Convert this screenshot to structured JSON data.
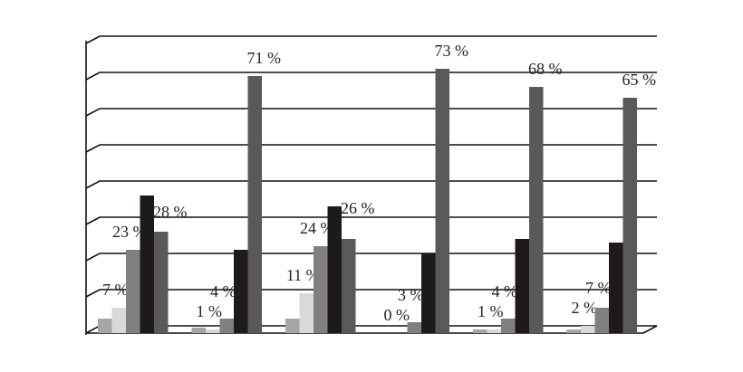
{
  "chart_data": {
    "type": "bar",
    "categories": [
      null,
      null,
      null,
      null,
      null,
      null
    ],
    "series": [
      {
        "color": "#a6a6a6",
        "values": [
          4,
          1.5,
          4,
          0,
          1,
          1
        ],
        "value_labels": [
          null,
          null,
          null,
          null,
          null,
          null
        ]
      },
      {
        "color": "#d9d9d9",
        "values": [
          7,
          1,
          11,
          0,
          1,
          2
        ],
        "value_labels": [
          "7 %",
          "1 %",
          "11 %",
          "0 %",
          "1 %",
          "2 %"
        ]
      },
      {
        "color": "#808080",
        "values": [
          23,
          4,
          24,
          3,
          4,
          7
        ],
        "value_labels": [
          "23 %",
          "4 %",
          "24 %",
          "3 %",
          "4 %",
          "7 %"
        ]
      },
      {
        "color": "#1f1a1a",
        "values": [
          38,
          23,
          35,
          22,
          26,
          25
        ],
        "value_labels": [
          null,
          null,
          null,
          null,
          null,
          null
        ]
      },
      {
        "color": "#595959",
        "values": [
          28,
          71,
          26,
          73,
          68,
          65
        ],
        "value_labels": [
          "28 %",
          "71 %",
          "26 %",
          "73 %",
          "68 %",
          "65 %"
        ]
      }
    ],
    "ylim": [
      0,
      80
    ],
    "yticks": [
      0,
      10,
      20,
      30,
      40,
      50,
      60,
      70,
      80
    ],
    "grid": true
  }
}
